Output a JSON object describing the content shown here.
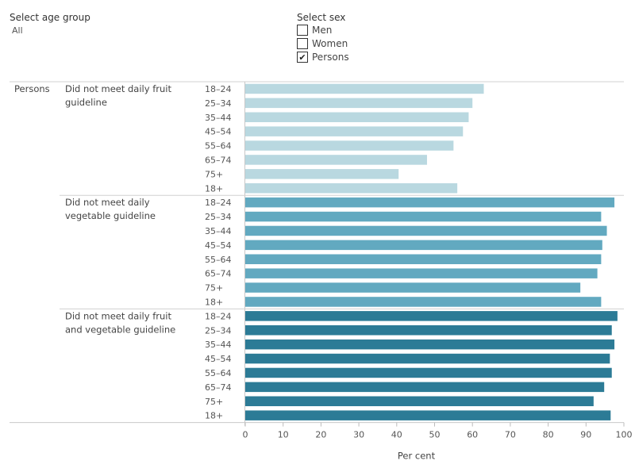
{
  "filters": {
    "age_group": {
      "title": "Select age group",
      "value": "All"
    },
    "sex": {
      "title": "Select sex",
      "options": [
        {
          "label": "Men",
          "checked": false
        },
        {
          "label": "Women",
          "checked": false
        },
        {
          "label": "Persons",
          "checked": true
        }
      ]
    }
  },
  "chart_data": {
    "type": "bar",
    "orientation": "horizontal",
    "row_header": "Persons",
    "xlabel": "Per cent",
    "xlim": [
      0,
      100
    ],
    "xticks": [
      0,
      10,
      20,
      30,
      40,
      50,
      60,
      70,
      80,
      90,
      100
    ],
    "categories": [
      "18–24",
      "25–34",
      "35–44",
      "45–54",
      "55–64",
      "65–74",
      "75+",
      "18+"
    ],
    "series": [
      {
        "name": "Did not meet daily fruit guideline",
        "color": "#b9d8e0",
        "values": [
          63,
          60,
          59,
          57.5,
          55,
          48,
          40.5,
          56
        ]
      },
      {
        "name": "Did not meet daily vegetable guideline",
        "color": "#62a9c0",
        "values": [
          97.5,
          94,
          95.5,
          94.3,
          94,
          93,
          88.5,
          94
        ]
      },
      {
        "name": "Did not meet daily fruit and vegetable guideline",
        "color": "#2c7b96",
        "values": [
          98.3,
          96.8,
          97.5,
          96.3,
          96.8,
          94.8,
          92,
          96.5
        ]
      }
    ]
  }
}
